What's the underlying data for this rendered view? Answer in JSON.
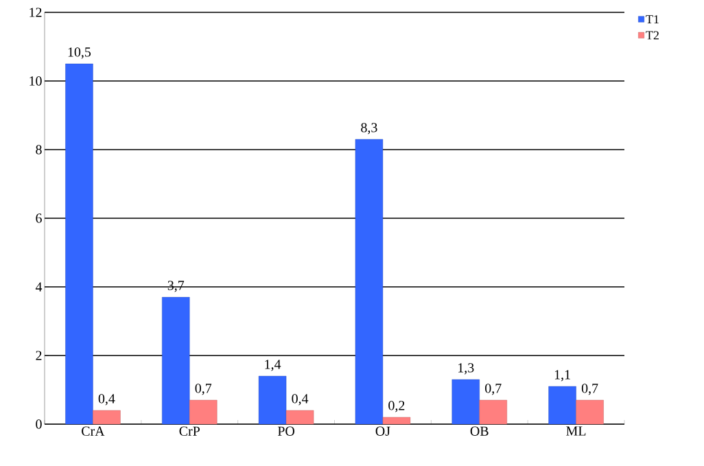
{
  "chart_data": {
    "type": "bar",
    "categories": [
      "CrA",
      "CrP",
      "PO",
      "OJ",
      "OB",
      "ML"
    ],
    "series": [
      {
        "name": "T1",
        "color": "#3366ff",
        "values": [
          10.5,
          3.7,
          1.4,
          8.3,
          1.3,
          1.1
        ],
        "value_labels": [
          "10,5",
          "3,7",
          "1,4",
          "8,3",
          "1,3",
          "1,1"
        ]
      },
      {
        "name": "T2",
        "color": "#ff7f7f",
        "values": [
          0.4,
          0.7,
          0.4,
          0.2,
          0.7,
          0.7
        ],
        "value_labels": [
          "0,4",
          "0,7",
          "0,4",
          "0,2",
          "0,7",
          "0,7"
        ]
      }
    ],
    "ylim": [
      0,
      12
    ],
    "yticks": [
      0,
      2,
      4,
      6,
      8,
      10,
      12
    ],
    "grid": "y",
    "legend": "top right"
  }
}
